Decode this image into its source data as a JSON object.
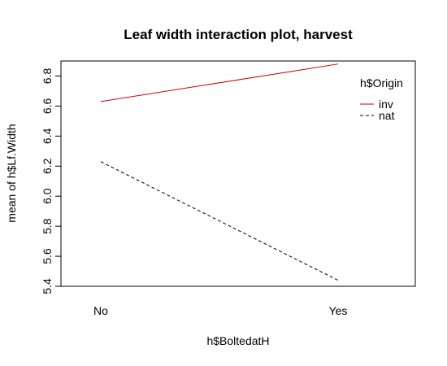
{
  "chart_data": {
    "type": "line",
    "title": "Leaf width interaction plot, harvest",
    "xlabel": "h$BoltedatH",
    "ylabel": "mean of  h$Lf.Width",
    "categories": [
      "No",
      "Yes"
    ],
    "series": [
      {
        "name": "inv",
        "values": [
          6.63,
          6.88
        ],
        "color": "#cc0000",
        "linestyle": "solid"
      },
      {
        "name": "nat",
        "values": [
          6.23,
          5.44
        ],
        "color": "#000000",
        "linestyle": "dashed"
      }
    ],
    "ylim": [
      5.4,
      6.9
    ],
    "yticks": [
      "5.4",
      "5.6",
      "5.8",
      "6.0",
      "6.2",
      "6.4",
      "6.6",
      "6.8"
    ],
    "legend": {
      "title": "h$Origin",
      "placement": "top-right"
    },
    "grid": false
  }
}
